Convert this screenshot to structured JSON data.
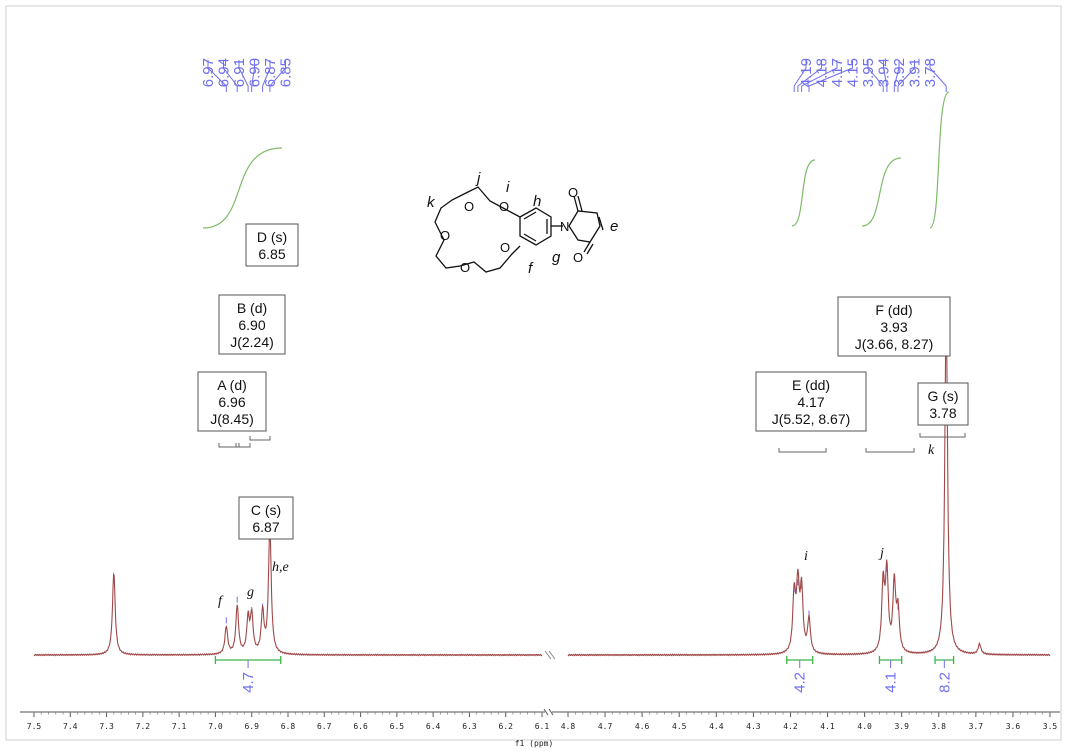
{
  "chart_data": {
    "type": "line",
    "xlabel": "f1 (ppm)",
    "x_ticks": [
      "7.5",
      "7.4",
      "7.3",
      "7.2",
      "7.1",
      "7.0",
      "6.9",
      "6.8",
      "6.7",
      "6.6",
      "6.5",
      "6.4",
      "6.3",
      "6.2",
      "6.1",
      "4.8",
      "4.7",
      "4.6",
      "4.5",
      "4.4",
      "4.3",
      "4.2",
      "4.1",
      "4.0",
      "3.9",
      "3.8",
      "3.7",
      "3.6",
      "3.5"
    ],
    "axis_break": "between 6.1 and 4.8 ppm",
    "xlim_left": [
      7.5,
      6.1
    ],
    "xlim_right": [
      4.8,
      3.5
    ],
    "x_reversed": true,
    "peak_labels_left": [
      "6.97",
      "6.94",
      "6.91",
      "6.90",
      "6.87",
      "6.85"
    ],
    "peak_labels_right": [
      "4.19",
      "4.18",
      "4.17",
      "4.15",
      "3.95",
      "3.94",
      "3.92",
      "3.91",
      "3.78"
    ],
    "peaks": [
      {
        "ppm": 7.28,
        "height": 0.24
      },
      {
        "ppm": 6.97,
        "height": 0.08
      },
      {
        "ppm": 6.94,
        "height": 0.14
      },
      {
        "ppm": 6.91,
        "height": 0.1
      },
      {
        "ppm": 6.9,
        "height": 0.11
      },
      {
        "ppm": 6.87,
        "height": 0.12
      },
      {
        "ppm": 6.85,
        "height": 0.37
      },
      {
        "ppm": 4.19,
        "height": 0.17
      },
      {
        "ppm": 4.18,
        "height": 0.19
      },
      {
        "ppm": 4.17,
        "height": 0.18
      },
      {
        "ppm": 4.15,
        "height": 0.1
      },
      {
        "ppm": 3.95,
        "height": 0.2
      },
      {
        "ppm": 3.94,
        "height": 0.23
      },
      {
        "ppm": 3.92,
        "height": 0.2
      },
      {
        "ppm": 3.91,
        "height": 0.12
      },
      {
        "ppm": 3.78,
        "height": 1.0
      },
      {
        "ppm": 3.69,
        "height": 0.03
      }
    ],
    "multiplets": [
      {
        "id": "D",
        "lines": [
          "D (s)",
          "6.85"
        ]
      },
      {
        "id": "B",
        "lines": [
          "B (d)",
          "6.90",
          "J(2.24)"
        ]
      },
      {
        "id": "A",
        "lines": [
          "A (d)",
          "6.96",
          "J(8.45)"
        ]
      },
      {
        "id": "C",
        "lines": [
          "C (s)",
          "6.87"
        ]
      },
      {
        "id": "E",
        "lines": [
          "E (dd)",
          "4.17",
          "J(5.52, 8.67)"
        ]
      },
      {
        "id": "F",
        "lines": [
          "F (dd)",
          "3.93",
          "J(3.66, 8.27)"
        ]
      },
      {
        "id": "G",
        "lines": [
          "G (s)",
          "3.78"
        ]
      }
    ],
    "integrals": [
      {
        "label": "4.7",
        "from": 7.0,
        "to": 6.82
      },
      {
        "label": "4.2",
        "from": 4.21,
        "to": 4.14
      },
      {
        "label": "4.1",
        "from": 3.96,
        "to": 3.9
      },
      {
        "label": "8.2",
        "from": 3.81,
        "to": 3.76
      }
    ],
    "assignments": [
      "f",
      "g",
      "h,e",
      "i",
      "j",
      "k"
    ],
    "colors": {
      "spectrum": "#a04848",
      "labels": "#6f6fee",
      "integral_curve": "#7dbb6a",
      "integral_bar": "#3cb44b"
    }
  },
  "molecule": {
    "atom_labels": [
      "O",
      "O",
      "O",
      "O",
      "O",
      "O",
      "O",
      "N"
    ],
    "position_labels": [
      "j",
      "i",
      "k",
      "h",
      "e",
      "g",
      "f"
    ]
  }
}
